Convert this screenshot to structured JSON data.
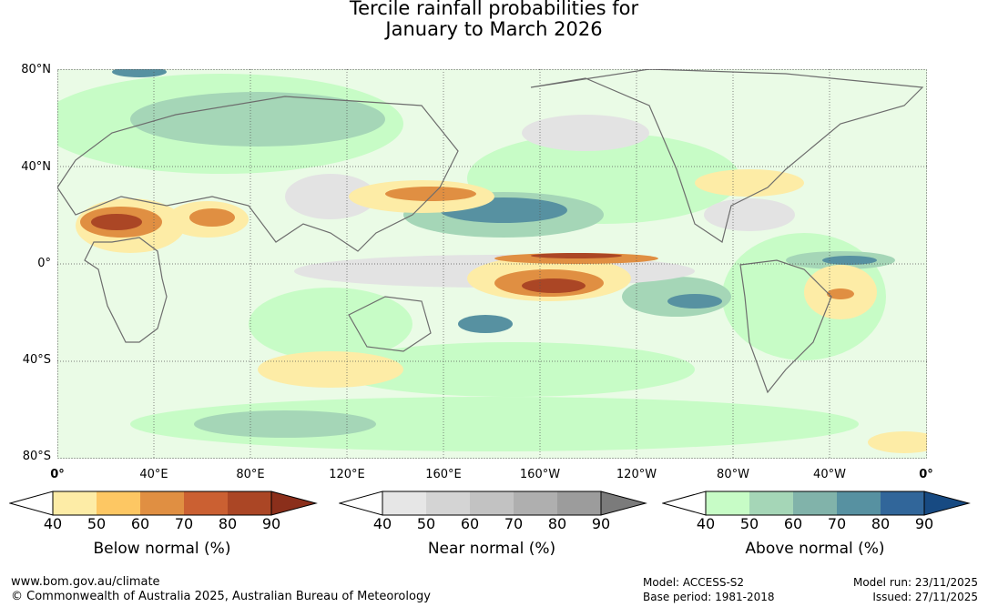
{
  "title": {
    "line1": "Tercile rainfall probabilities for",
    "line2": "January to March 2026"
  },
  "lat_labels": [
    "80°N",
    "40°N",
    "0°",
    "40°S",
    "80°S"
  ],
  "lon_labels": [
    "0°",
    "40°E",
    "80°E",
    "120°E",
    "160°E",
    "160°W",
    "120°W",
    "80°W",
    "40°W",
    "0°"
  ],
  "legends": [
    {
      "title": "Below normal (%)",
      "ticks": [
        "40",
        "50",
        "60",
        "70",
        "80",
        "90"
      ],
      "colors": [
        "#ffffff",
        "#fdeca6",
        "#fdc763",
        "#e08f42",
        "#cb6032",
        "#ab4625",
        "#8b2f1b"
      ]
    },
    {
      "title": "Near normal (%)",
      "ticks": [
        "40",
        "50",
        "60",
        "70",
        "80",
        "90"
      ],
      "colors": [
        "#ffffff",
        "#e6e6e6",
        "#d4d4d4",
        "#c2c2c2",
        "#afafaf",
        "#9c9c9c",
        "#7b7b7b"
      ]
    },
    {
      "title": "Above normal (%)",
      "ticks": [
        "40",
        "50",
        "60",
        "70",
        "80",
        "90"
      ],
      "colors": [
        "#ffffff",
        "#c7fcc6",
        "#a5d6b7",
        "#81b3aa",
        "#5791a1",
        "#31669a",
        "#174a82"
      ]
    }
  ],
  "footer": {
    "website": "www.bom.gov.au/climate",
    "copyright": "© Commonwealth of Australia 2025, Australian Bureau of Meteorology",
    "model": "Model: ACCESS-S2",
    "base_period": "Base period: 1981-2018",
    "model_run": "Model run: 23/11/2025",
    "issued": "Issued: 27/11/2025"
  }
}
